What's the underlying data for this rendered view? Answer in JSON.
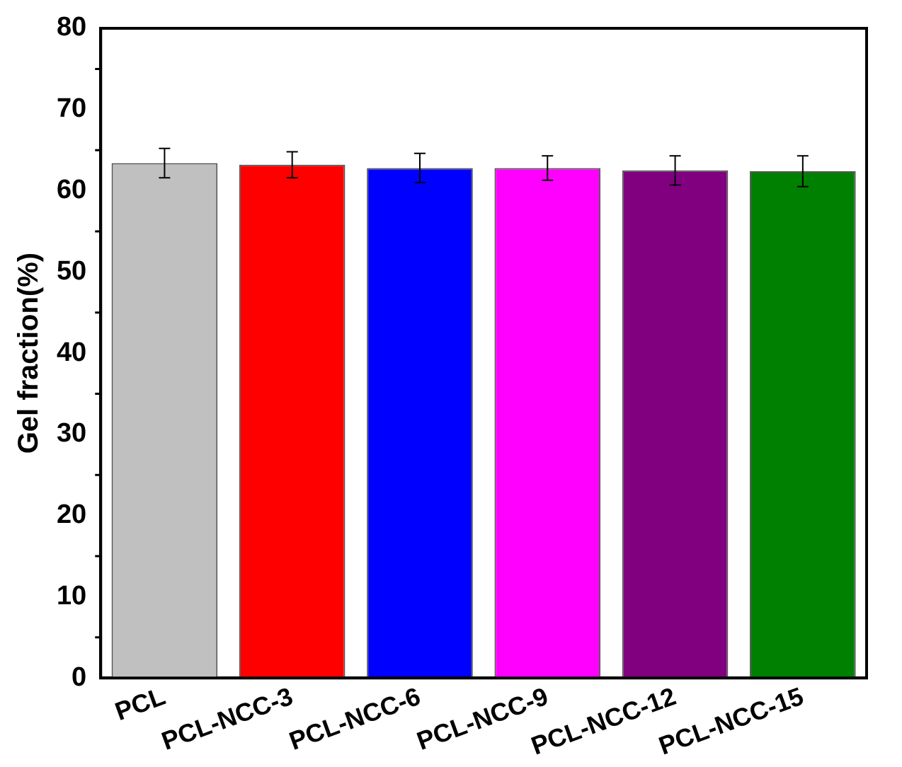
{
  "chart_data": {
    "type": "bar",
    "ylabel": "Gel fraction(%)",
    "categories": [
      "PCL",
      "PCL-NCC-3",
      "PCL-NCC-6",
      "PCL-NCC-9",
      "PCL-NCC-12",
      "PCL-NCC-15"
    ],
    "values": [
      63.4,
      63.2,
      62.8,
      62.8,
      62.5,
      62.4
    ],
    "errors": [
      1.8,
      1.6,
      1.8,
      1.5,
      1.8,
      1.9
    ],
    "colors": [
      "#c0c0c0",
      "#ff0000",
      "#0000ff",
      "#ff00ff",
      "#800080",
      "#008000"
    ],
    "ylim": [
      0,
      80
    ],
    "yticks": [
      0,
      10,
      20,
      30,
      40,
      50,
      60,
      70,
      80
    ],
    "grid": false,
    "legend": false
  }
}
